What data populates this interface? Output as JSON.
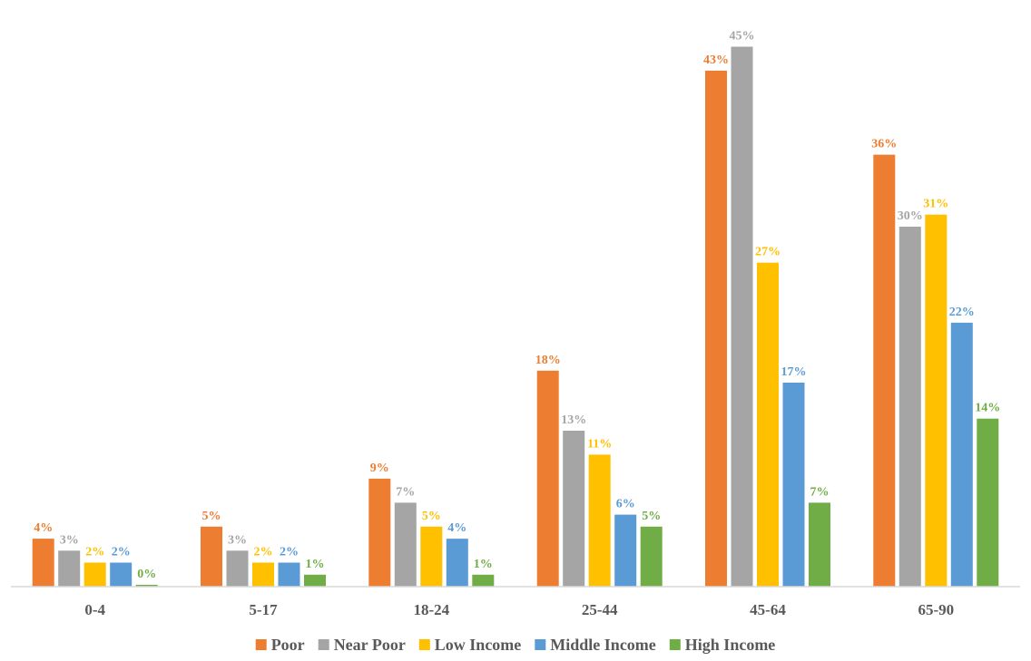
{
  "chart_data": {
    "type": "bar",
    "title": "",
    "xlabel": "",
    "ylabel": "",
    "ylim": [
      0,
      47
    ],
    "grid": false,
    "legend_position": "bottom",
    "categories": [
      "0-4",
      "5-17",
      "18-24",
      "25-44",
      "45-64",
      "65-90"
    ],
    "series": [
      {
        "name": "Poor",
        "color": "#ED7D31",
        "values": [
          4,
          5,
          9,
          18,
          43,
          36
        ],
        "labels": [
          "4%",
          "5%",
          "9%",
          "18%",
          "43%",
          "36%"
        ]
      },
      {
        "name": "Near Poor",
        "color": "#A5A5A5",
        "values": [
          3,
          3,
          7,
          13,
          45,
          30
        ],
        "labels": [
          "3%",
          "3%",
          "7%",
          "13%",
          "45%",
          "30%"
        ]
      },
      {
        "name": "Low Income",
        "color": "#FFC000",
        "values": [
          2,
          2,
          5,
          11,
          27,
          31
        ],
        "labels": [
          "2%",
          "2%",
          "5%",
          "11%",
          "27%",
          "31%"
        ]
      },
      {
        "name": "Middle Income",
        "color": "#5B9BD5",
        "values": [
          2,
          2,
          4,
          6,
          17,
          22
        ],
        "labels": [
          "2%",
          "2%",
          "4%",
          "6%",
          "17%",
          "22%"
        ]
      },
      {
        "name": "High Income",
        "color": "#70AD47",
        "values": [
          0,
          1,
          1,
          5,
          7,
          14
        ],
        "labels": [
          "0%",
          "1%",
          "1%",
          "5%",
          "7%",
          "14%"
        ]
      }
    ]
  }
}
